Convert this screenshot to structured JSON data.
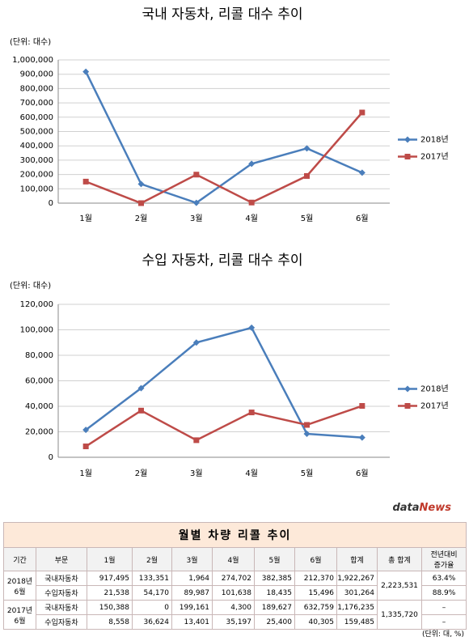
{
  "chart_data": [
    {
      "type": "line",
      "title": "국내 자동차, 리콜 대수 추이",
      "unit_label": "(단위: 대수)",
      "categories": [
        "1월",
        "2월",
        "3월",
        "4월",
        "5월",
        "6월"
      ],
      "series": [
        {
          "name": "2018년",
          "color": "#4a7ebb",
          "marker": "diamond",
          "values": [
            917495,
            133351,
            1964,
            274702,
            382385,
            212370
          ]
        },
        {
          "name": "2017년",
          "color": "#be4b48",
          "marker": "square",
          "values": [
            150388,
            0,
            199161,
            4300,
            189627,
            632759
          ]
        }
      ],
      "ylim": [
        0,
        1000000
      ],
      "yticks": [
        0,
        {
          "value": 100000,
          "label": "100,000"
        },
        {
          "value": 200000,
          "label": "200,000"
        },
        {
          "value": 300000,
          "label": "300,000"
        },
        {
          "value": 400000,
          "label": "400,000"
        },
        {
          "value": 500000,
          "label": "500,000"
        },
        {
          "value": 600000,
          "label": "600,000"
        },
        {
          "value": 700000,
          "label": "700,000"
        },
        {
          "value": 800000,
          "label": "800,000"
        },
        {
          "value": 900000,
          "label": "900,000"
        },
        {
          "value": 1000000,
          "label": "1,000,000"
        }
      ],
      "grid": true,
      "legend": "right"
    },
    {
      "type": "line",
      "title": "수입 자동차, 리콜 대수 추이",
      "unit_label": "(단위: 대수)",
      "categories": [
        "1월",
        "2월",
        "3월",
        "4월",
        "5월",
        "6월"
      ],
      "series": [
        {
          "name": "2018년",
          "color": "#4a7ebb",
          "marker": "diamond",
          "values": [
            21538,
            54170,
            89987,
            101638,
            18435,
            15496
          ]
        },
        {
          "name": "2017년",
          "color": "#be4b48",
          "marker": "square",
          "values": [
            8558,
            36624,
            13401,
            35197,
            25400,
            40305
          ]
        }
      ],
      "ylim": [
        0,
        120000
      ],
      "yticks": [
        0,
        {
          "value": 20000,
          "label": "20,000"
        },
        {
          "value": 40000,
          "label": "40,000"
        },
        {
          "value": 60000,
          "label": "60,000"
        },
        {
          "value": 80000,
          "label": "80,000"
        },
        {
          "value": 100000,
          "label": "100,000"
        },
        {
          "value": 120000,
          "label": "120,000"
        }
      ],
      "grid": true,
      "legend": "right"
    }
  ],
  "table": {
    "logo": {
      "a": "data",
      "b": "News"
    },
    "title": "월별 차량 리콜 추이",
    "header": [
      "기간",
      "부문",
      "1월",
      "2월",
      "3월",
      "4월",
      "5월",
      "6월",
      "합계",
      "총 합계",
      "전년대비 증가율"
    ],
    "groups": [
      {
        "period": "2018년 6월",
        "total": "2,223,531",
        "rows": [
          [
            "국내자동차",
            "917,495",
            "133,351",
            "1,964",
            "274,702",
            "382,385",
            "212,370",
            "1,922,267",
            "63.4%"
          ],
          [
            "수입자동차",
            "21,538",
            "54,170",
            "89,987",
            "101,638",
            "18,435",
            "15,496",
            "301,264",
            "88.9%"
          ]
        ]
      },
      {
        "period": "2017년 6월",
        "total": "1,335,720",
        "rows": [
          [
            "국내자동차",
            "150,388",
            "0",
            "199,161",
            "4,300",
            "189,627",
            "632,759",
            "1,176,235",
            "–"
          ],
          [
            "수입자동차",
            "8,558",
            "36,624",
            "13,401",
            "35,197",
            "25,400",
            "40,305",
            "159,485",
            "–"
          ]
        ]
      }
    ],
    "unit": "(단위: 대, %)"
  }
}
